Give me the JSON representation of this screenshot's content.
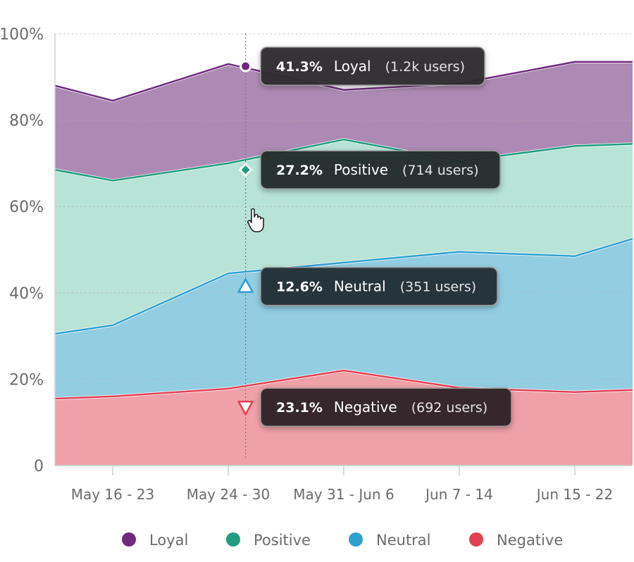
{
  "chart_data": {
    "type": "area",
    "stacked": true,
    "title": "",
    "xlabel": "",
    "ylabel": "",
    "ylim": [
      0,
      100
    ],
    "y_ticks": [
      "0",
      "20%",
      "40%",
      "60%",
      "80%",
      "100%"
    ],
    "y_tick_values": [
      0,
      20,
      40,
      60,
      80,
      100
    ],
    "categories": [
      "May 16 - 23",
      "May 24 - 30",
      "May 31 - Jun 6",
      "Jun 7 - 14",
      "Jun 15 - 22"
    ],
    "x": [
      0,
      0.5,
      1.5,
      2.5,
      3.5,
      4.5,
      5
    ],
    "category_positions": [
      0.5,
      1.5,
      2.5,
      3.5,
      4.5
    ],
    "series": [
      {
        "name": "Negative",
        "color": "#e04050",
        "fill": "#f0a0a8",
        "cumulative": [
          15.5,
          16,
          17.8,
          22,
          18,
          17,
          17.5
        ]
      },
      {
        "name": "Neutral",
        "color": "#2e9fcf",
        "fill": "#93cde2",
        "cumulative": [
          30.5,
          32.5,
          44.5,
          47,
          49.5,
          48.5,
          52.5
        ]
      },
      {
        "name": "Positive",
        "color": "#1f9c7f",
        "fill": "#b8e3d7",
        "cumulative": [
          68.5,
          66,
          70,
          75.5,
          70.5,
          74,
          74.5
        ]
      },
      {
        "name": "Loyal",
        "color": "#6f2a7e",
        "fill": "#ad8ab3",
        "cumulative": [
          88,
          84.5,
          93,
          87,
          88.5,
          93.5,
          93.5
        ]
      }
    ],
    "grid": true,
    "legend_position": "bottom",
    "hover_index": 1,
    "hover_x": 1.65,
    "tooltips": [
      {
        "series": "Loyal",
        "percent": "41.3%",
        "name": "Loyal",
        "users": "(1.2k users)",
        "color": "#6f2a7e",
        "marker": "circle",
        "theme": "#2e2a30",
        "anchor_y": 92.5
      },
      {
        "series": "Positive",
        "percent": "27.2%",
        "name": "Positive",
        "users": "(714 users)",
        "color": "#1f9c7f",
        "marker": "diamond",
        "theme": "#252d2c",
        "anchor_y": 68.5
      },
      {
        "series": "Neutral",
        "percent": "12.6%",
        "name": "Neutral",
        "users": "(351 users)",
        "color": "#2e9fcf",
        "marker": "triangle-up",
        "theme": "#253036",
        "anchor_y": 41.5
      },
      {
        "series": "Negative",
        "percent": "23.1%",
        "name": "Negative",
        "users": "(692 users)",
        "color": "#e04050",
        "marker": "triangle-down",
        "theme": "#302527",
        "anchor_y": 13.5
      }
    ],
    "legend": [
      {
        "name": "Loyal",
        "color": "#6f2a7e"
      },
      {
        "name": "Positive",
        "color": "#1f9c7f"
      },
      {
        "name": "Neutral",
        "color": "#2e9fcf"
      },
      {
        "name": "Negative",
        "color": "#e04050"
      }
    ]
  }
}
